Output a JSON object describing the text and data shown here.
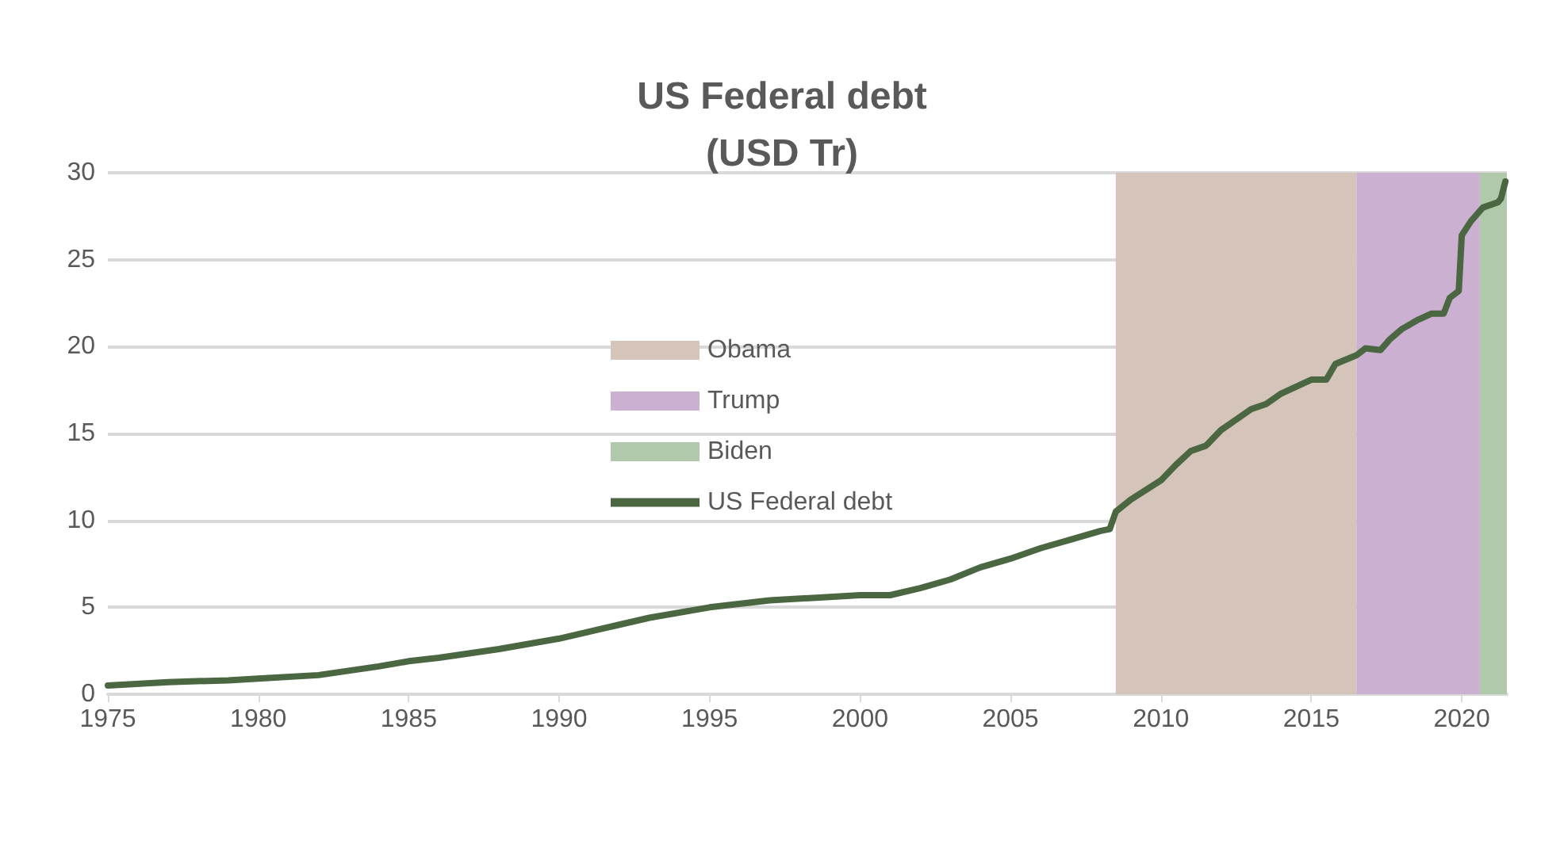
{
  "chart_data": {
    "type": "line",
    "title": "US Federal debt\n(USD Tr)",
    "series": [
      {
        "name": "Obama",
        "type": "area",
        "color": "#d5c4b9",
        "x": [
          2008.5,
          2016.5
        ],
        "values": [
          30,
          30
        ]
      },
      {
        "name": "Trump",
        "type": "area",
        "color": "#cbb0d2",
        "x": [
          2016.5,
          2020.6
        ],
        "values": [
          30,
          30
        ]
      },
      {
        "name": "Biden",
        "type": "area",
        "color": "#b1c9ab",
        "x": [
          2020.6,
          2021.5
        ],
        "values": [
          30,
          30
        ]
      },
      {
        "name": "US Federal debt",
        "color": "#4a6741",
        "x": [
          1975,
          1977,
          1979,
          1980,
          1982,
          1984,
          1985,
          1986,
          1988,
          1990,
          1992,
          1993,
          1995,
          1997,
          1999,
          2000,
          2001,
          2002,
          2003,
          2004,
          2005,
          2006,
          2007,
          2008,
          2008.3,
          2008.5,
          2009,
          2010,
          2010.5,
          2011,
          2011.5,
          2012,
          2012.5,
          2013,
          2013.5,
          2014,
          2014.5,
          2015,
          2015.5,
          2015.8,
          2016.5,
          2016.8,
          2017.3,
          2017.6,
          2018,
          2018.5,
          2019,
          2019.4,
          2019.6,
          2019.9,
          2020,
          2020.3,
          2020.7,
          2021.2,
          2021.3,
          2021.45
        ],
        "values": [
          0.5,
          0.7,
          0.8,
          0.9,
          1.1,
          1.6,
          1.9,
          2.1,
          2.6,
          3.2,
          4.0,
          4.4,
          5.0,
          5.4,
          5.6,
          5.7,
          5.7,
          6.1,
          6.6,
          7.3,
          7.8,
          8.4,
          8.9,
          9.4,
          9.5,
          10.5,
          11.2,
          12.3,
          13.2,
          14.0,
          14.3,
          15.2,
          15.8,
          16.4,
          16.7,
          17.3,
          17.7,
          18.1,
          18.1,
          19.0,
          19.5,
          19.9,
          19.8,
          20.4,
          21.0,
          21.5,
          21.9,
          21.9,
          22.8,
          23.2,
          26.4,
          27.2,
          28.0,
          28.3,
          28.5,
          29.5
        ]
      }
    ],
    "xlim": [
      1975,
      2021.5
    ],
    "xticks": [
      1975,
      1980,
      1985,
      1990,
      1995,
      2000,
      2005,
      2010,
      2015,
      2020
    ],
    "ylim": [
      0,
      30
    ],
    "yticks": [
      0,
      5,
      10,
      15,
      20,
      25,
      30
    ],
    "grid": "y",
    "legend": "left",
    "marker": "none",
    "line_style": "solid"
  }
}
